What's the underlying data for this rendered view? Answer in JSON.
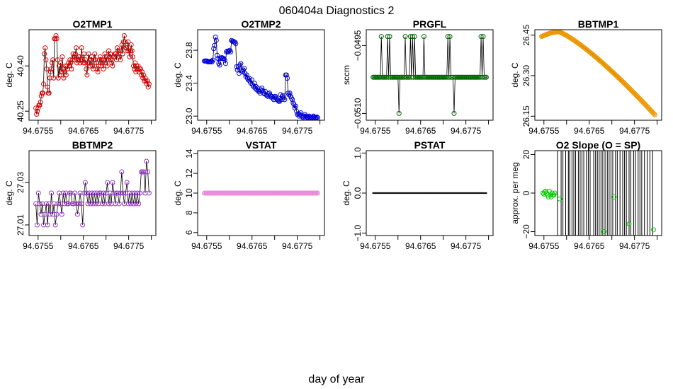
{
  "title": "060404a   Diagnostics 2",
  "xlabel": "day of year",
  "chart_data": [
    {
      "type": "line",
      "title": "O2TMP1",
      "ylabel": "deg. C",
      "color": "#dd0000",
      "xlim": [
        94.6753,
        94.6781
      ],
      "ylim": [
        40.22,
        40.52
      ],
      "xticks": [
        "94.6755",
        "94.6765",
        "94.6775"
      ],
      "xtick_values": [
        94.6755,
        94.6765,
        94.6775
      ],
      "yticks": [
        "40.25",
        "40.40"
      ],
      "ytick_values": [
        40.25,
        40.4
      ],
      "x_start": 94.67545,
      "x_end": 94.67795,
      "values": [
        40.26,
        40.24,
        40.25,
        40.26,
        40.27,
        40.27,
        40.28,
        40.3,
        40.31,
        40.31,
        40.34,
        40.44,
        40.46,
        40.42,
        40.39,
        40.33,
        40.31,
        40.31,
        40.36,
        40.38,
        40.39,
        40.41,
        40.42,
        40.36,
        40.49,
        40.49,
        40.5,
        40.49,
        40.42,
        40.36,
        40.4,
        40.37,
        40.41,
        40.38,
        40.43,
        40.39,
        40.36,
        40.38,
        40.4,
        40.37,
        40.4,
        40.39,
        40.41,
        40.4,
        40.42,
        40.41,
        40.39,
        40.42,
        40.44,
        40.43,
        40.42,
        40.44,
        40.46,
        40.41,
        40.42,
        40.43,
        40.43,
        40.41,
        40.42,
        40.46,
        40.42,
        40.41,
        40.44,
        40.41,
        40.42,
        40.39,
        40.37,
        40.41,
        40.44,
        40.41,
        40.4,
        40.42,
        40.43,
        40.4,
        40.39,
        40.42,
        40.44,
        40.42,
        40.41,
        40.39,
        40.38,
        40.4,
        40.42,
        40.43,
        40.4,
        40.42,
        40.41,
        40.39,
        40.42,
        40.44,
        40.41,
        40.43,
        40.4,
        40.42,
        40.45,
        40.43,
        40.44,
        40.42,
        40.41,
        40.4,
        40.43,
        40.43,
        40.44,
        40.44,
        40.42,
        40.46,
        40.45,
        40.44,
        40.43,
        40.42,
        40.45,
        40.47,
        40.44,
        40.48,
        40.5,
        40.48,
        40.46,
        40.46,
        40.45,
        40.48,
        40.45,
        40.43,
        40.45,
        40.47,
        40.45,
        40.43,
        40.4,
        40.39,
        40.41,
        40.38,
        40.4,
        40.39,
        40.4,
        40.38,
        40.39,
        40.39,
        40.37,
        40.38,
        40.36,
        40.37,
        40.35,
        40.36,
        40.35,
        40.34,
        40.35,
        40.33,
        40.34
      ]
    },
    {
      "type": "line",
      "title": "O2TMP2",
      "ylabel": "deg. C",
      "color": "#0000dd",
      "xlim": [
        94.6753,
        94.6781
      ],
      "ylim": [
        22.95,
        24.05
      ],
      "xticks": [
        "94.6755",
        "94.6765",
        "94.6775"
      ],
      "xtick_values": [
        94.6755,
        94.6765,
        94.6775
      ],
      "yticks": [
        "23.0",
        "23.4",
        "23.8"
      ],
      "ytick_values": [
        23.0,
        23.4,
        23.8
      ],
      "x_start": 94.67545,
      "x_end": 94.67795,
      "values": [
        23.67,
        23.67,
        23.67,
        23.67,
        23.66,
        23.66,
        23.66,
        23.66,
        23.67,
        23.66,
        23.68,
        23.82,
        23.86,
        23.96,
        23.92,
        23.74,
        23.7,
        23.64,
        23.62,
        23.7,
        23.71,
        23.71,
        23.7,
        23.7,
        23.68,
        23.64,
        23.78,
        23.79,
        23.78,
        23.79,
        23.8,
        23.78,
        23.92,
        23.91,
        23.91,
        23.9,
        23.9,
        23.88,
        23.6,
        23.56,
        23.6,
        23.52,
        23.62,
        23.64,
        23.55,
        23.54,
        23.56,
        23.58,
        23.52,
        23.48,
        23.5,
        23.46,
        23.44,
        23.46,
        23.42,
        23.4,
        23.44,
        23.38,
        23.36,
        23.4,
        23.34,
        23.36,
        23.32,
        23.34,
        23.3,
        23.3,
        23.28,
        23.32,
        23.34,
        23.31,
        23.28,
        23.27,
        23.3,
        23.26,
        23.25,
        23.24,
        23.27,
        23.28,
        23.25,
        23.23,
        23.24,
        23.22,
        23.2,
        23.23,
        23.24,
        23.22,
        23.2,
        23.19,
        23.18,
        23.18,
        23.26,
        23.2,
        23.24,
        23.25,
        23.22,
        23.2,
        23.5,
        23.5,
        23.46,
        23.28,
        23.26,
        23.28,
        23.24,
        23.22,
        23.2,
        23.16,
        23.14,
        23.1,
        23.12,
        23.06,
        23.02,
        23.03,
        23.0,
        23.02,
        23.04,
        23.0,
        22.99,
        22.98,
        23.0,
        23.02,
        23.0,
        22.99,
        22.98,
        22.99,
        23.0,
        22.99,
        22.98,
        22.98,
        22.99,
        23.0,
        22.99,
        22.98,
        22.98,
        22.99,
        22.98
      ]
    },
    {
      "type": "line",
      "title": "PRGFL",
      "ylabel": "sccm",
      "color": "#006600",
      "xlim": [
        94.6753,
        94.6781
      ],
      "ylim": [
        -0.05115,
        -0.04915
      ],
      "xticks": [
        "94.6755",
        "94.6765",
        "94.6775"
      ],
      "xtick_values": [
        94.6755,
        94.6765,
        94.6775
      ],
      "yticks": [
        "−0.0510",
        "−0.0495"
      ],
      "ytick_values": [
        -0.051,
        -0.0495
      ],
      "x_start": 94.67545,
      "x_end": 94.67795,
      "baseline": -0.0502,
      "high": -0.0493,
      "low": -0.051,
      "high_fracs": [
        0.07,
        0.13,
        0.15,
        0.28,
        0.33,
        0.35,
        0.37,
        0.45,
        0.66,
        0.68,
        0.95,
        0.97
      ],
      "low_fracs": [
        0.23,
        0.72
      ]
    },
    {
      "type": "line",
      "title": "BBTMP1",
      "ylabel": "deg. C",
      "color": "#ee9900",
      "xlim": [
        94.6753,
        94.6781
      ],
      "ylim": [
        26.135,
        26.47
      ],
      "xticks": [
        "94.6755",
        "94.6765",
        "94.6775"
      ],
      "xtick_values": [
        94.6755,
        94.6765,
        94.6775
      ],
      "yticks": [
        "26.15",
        "26.30",
        "26.45"
      ],
      "ytick_values": [
        26.15,
        26.3,
        26.45
      ],
      "x_start": 94.67545,
      "x_end": 94.67795,
      "y_start": 26.445,
      "y_peak": 26.462,
      "y_end": 26.155,
      "peak_frac": 0.15
    },
    {
      "type": "line",
      "title": "BBTMP2",
      "ylabel": "deg. C",
      "color": "#9933cc",
      "xlim": [
        94.6753,
        94.6781
      ],
      "ylim": [
        27.005,
        27.045
      ],
      "xticks": [
        "94.6755",
        "94.6765",
        "94.6775"
      ],
      "xtick_values": [
        94.6755,
        94.6765,
        94.6775
      ],
      "yticks": [
        "27.01",
        "27.03"
      ],
      "ytick_values": [
        27.01,
        27.03
      ],
      "x_start": 94.67545,
      "x_end": 94.67795,
      "values": [
        27.02,
        27.01,
        27.025,
        27.02,
        27.015,
        27.02,
        27.01,
        27.015,
        27.02,
        27.01,
        27.02,
        27.015,
        27.025,
        27.015,
        27.02,
        27.01,
        27.015,
        27.02,
        27.025,
        27.02,
        27.015,
        27.025,
        27.02,
        27.025,
        27.02,
        27.02,
        27.025,
        27.025,
        27.02,
        27.02,
        27.025,
        27.02,
        27.015,
        27.02,
        27.025,
        27.02,
        27.01,
        27.025,
        27.03,
        27.025,
        27.02,
        27.025,
        27.02,
        27.025,
        27.02,
        27.025,
        27.02,
        27.025,
        27.02,
        27.025,
        27.025,
        27.02,
        27.025,
        27.02,
        27.025,
        27.03,
        27.02,
        27.025,
        27.02,
        27.03,
        27.025,
        27.02,
        27.025,
        27.025,
        27.02,
        27.025,
        27.035,
        27.025,
        27.02,
        27.025,
        27.03,
        27.02,
        27.025,
        27.02,
        27.025,
        27.02,
        27.025,
        27.02,
        27.025,
        27.02,
        27.025,
        27.035,
        27.035,
        27.035,
        27.025,
        27.04,
        27.035,
        27.025
      ]
    },
    {
      "type": "line",
      "title": "VSTAT",
      "ylabel": "deg. C",
      "color": "#ee88dd",
      "xlim": [
        94.6753,
        94.6781
      ],
      "ylim": [
        5.7,
        14.3
      ],
      "xticks": [
        "94.6755",
        "94.6765",
        "94.6775"
      ],
      "xtick_values": [
        94.6755,
        94.6765,
        94.6775
      ],
      "yticks": [
        "6",
        "8",
        "10",
        "12",
        "14"
      ],
      "ytick_values": [
        6,
        8,
        10,
        12,
        14
      ],
      "x_start": 94.67545,
      "x_end": 94.67795,
      "constant": 10
    },
    {
      "type": "line",
      "title": "PSTAT",
      "ylabel": "deg. C",
      "color": "#ffff00",
      "xlim": [
        94.6753,
        94.6781
      ],
      "ylim": [
        -1.06,
        1.06
      ],
      "xticks": [
        "94.6755",
        "94.6765",
        "94.6775"
      ],
      "xtick_values": [
        94.6755,
        94.6765,
        94.6775
      ],
      "yticks": [
        "−1.0",
        "0.0",
        "1.0"
      ],
      "ytick_values": [
        -1.0,
        0.0,
        1.0
      ],
      "x_start": 94.67545,
      "x_end": 94.67795,
      "constant": 0
    },
    {
      "type": "scatter",
      "title": "O2 Slope (O = SP)",
      "ylabel": "approx. per meg",
      "color": "#00cc00",
      "xlim": [
        94.6753,
        94.6781
      ],
      "ylim": [
        -22,
        22
      ],
      "xticks": [
        "94.6755",
        "94.6765",
        "94.6775"
      ],
      "xtick_values": [
        94.6755,
        94.6765,
        94.6775
      ],
      "yticks": [
        "−20",
        "0",
        "20"
      ],
      "ytick_values": [
        -20,
        0,
        20
      ],
      "points_x": [
        94.67548,
        94.6755,
        94.67552,
        94.67554,
        94.67556,
        94.67558,
        94.6756,
        94.67562,
        94.67564,
        94.67566,
        94.67568,
        94.6757,
        94.67572,
        94.67574,
        94.67585,
        94.67683,
        94.67705,
        94.67738,
        94.67792
      ],
      "points_y": [
        0,
        -0.5,
        0.5,
        1,
        0,
        -1,
        -2,
        1,
        -1,
        -2,
        0,
        -1,
        -1,
        0,
        -3,
        -20,
        -2,
        -16,
        -19
      ],
      "vline_x": [
        94.6758,
        94.67588,
        94.67592,
        94.67598,
        94.67604,
        94.67607,
        94.67612,
        94.67616,
        94.6762,
        94.67626,
        94.6763,
        94.67634,
        94.67638,
        94.67644,
        94.67648,
        94.67652,
        94.6766,
        94.67664,
        94.67668,
        94.67672,
        94.67676,
        94.6768,
        94.67685,
        94.6769,
        94.67694,
        94.67698,
        94.67702,
        94.67708,
        94.67712,
        94.67718,
        94.67724,
        94.67728,
        94.67732,
        94.67738,
        94.67742,
        94.67748,
        94.67752,
        94.67758,
        94.67762,
        94.67766,
        94.67772,
        94.67778,
        94.67784,
        94.6779
      ]
    }
  ]
}
